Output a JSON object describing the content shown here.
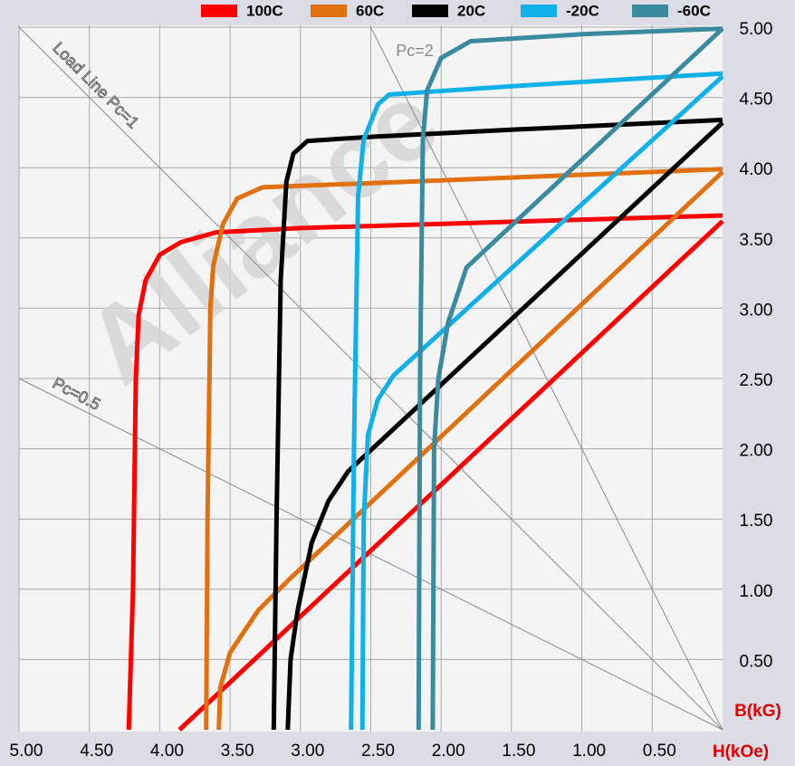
{
  "chart_data": {
    "type": "line",
    "watermark": "Alliance",
    "x_label": "H(kOe)",
    "y_label": "B(kG)",
    "xlim": [
      5,
      0
    ],
    "ylim": [
      0,
      5
    ],
    "xticks": [
      {
        "value": 5,
        "label": "5.00"
      },
      {
        "value": 4.5,
        "label": "4.50"
      },
      {
        "value": 4,
        "label": "4.00"
      },
      {
        "value": 3.5,
        "label": "3.50"
      },
      {
        "value": 3,
        "label": "3.00"
      },
      {
        "value": 2.5,
        "label": "2.50"
      },
      {
        "value": 2,
        "label": "2.00"
      },
      {
        "value": 1.5,
        "label": "1.50"
      },
      {
        "value": 1,
        "label": "1.00"
      },
      {
        "value": 0.5,
        "label": "0.50"
      }
    ],
    "yticks": [
      {
        "value": 0.5,
        "label": "0.50"
      },
      {
        "value": 1,
        "label": "1.00"
      },
      {
        "value": 1.5,
        "label": "1.50"
      },
      {
        "value": 2,
        "label": "2.00"
      },
      {
        "value": 2.5,
        "label": "2.50"
      },
      {
        "value": 3,
        "label": "3.00"
      },
      {
        "value": 3.5,
        "label": "3.50"
      },
      {
        "value": 4,
        "label": "4.00"
      },
      {
        "value": 4.5,
        "label": "4.50"
      },
      {
        "value": 5,
        "label": "5.00"
      }
    ],
    "grid": true,
    "legend_position": "top",
    "load_lines": [
      {
        "label": "Load Line Pc=1",
        "x": [
          5,
          0
        ],
        "values": [
          5,
          0
        ]
      },
      {
        "label": "Pc=2",
        "x": [
          2.5,
          0
        ],
        "values": [
          5,
          0
        ]
      },
      {
        "label": "Pc=0.5",
        "x": [
          5,
          0
        ],
        "values": [
          2.5,
          0
        ]
      }
    ],
    "series": [
      {
        "name": "100C",
        "color": "#ff0000",
        "curves": [
          {
            "x": [
              4.22,
              4.19,
              4.17,
              4.15,
              4.1,
              4.0,
              3.85,
              3.6,
              3.0,
              2.0,
              1.0,
              0
            ],
            "values": [
              0,
              1.0,
              2.5,
              2.95,
              3.2,
              3.38,
              3.47,
              3.54,
              3.57,
              3.6,
              3.63,
              3.66
            ]
          },
          {
            "x": [
              3.86,
              0
            ],
            "values": [
              0,
              3.62
            ]
          }
        ]
      },
      {
        "name": "60C",
        "color": "#e07010",
        "curves": [
          {
            "x": [
              3.67,
              3.66,
              3.64,
              3.62,
              3.55,
              3.45,
              3.27,
              2.0,
              1.0,
              0
            ],
            "values": [
              0,
              1.5,
              3.0,
              3.3,
              3.6,
              3.78,
              3.86,
              3.91,
              3.95,
              3.99
            ]
          },
          {
            "x": [
              3.58,
              3.57,
              3.5,
              3.3,
              3.08,
              0
            ],
            "values": [
              0,
              0.3,
              0.55,
              0.85,
              1.07,
              3.97
            ]
          }
        ]
      },
      {
        "name": "20C",
        "color": "#000000",
        "curves": [
          {
            "x": [
              3.19,
              3.17,
              3.14,
              3.1,
              3.05,
              2.95,
              2.5,
              1.5,
              0
            ],
            "values": [
              0,
              1.5,
              3.2,
              3.9,
              4.1,
              4.19,
              4.22,
              4.27,
              4.34
            ]
          },
          {
            "x": [
              3.09,
              3.07,
              3.02,
              2.92,
              2.8,
              2.66,
              0
            ],
            "values": [
              0,
              0.5,
              0.85,
              1.33,
              1.63,
              1.84,
              4.32
            ]
          }
        ]
      },
      {
        "name": "-20C",
        "color": "#10b0e8",
        "curves": [
          {
            "x": [
              2.64,
              2.62,
              2.59,
              2.55,
              2.45,
              2.37,
              1.5,
              0
            ],
            "values": [
              0,
              2.0,
              3.8,
              4.2,
              4.45,
              4.52,
              4.58,
              4.67
            ]
          },
          {
            "x": [
              2.56,
              2.55,
              2.52,
              2.45,
              2.34,
              0
            ],
            "values": [
              0,
              1.5,
              2.1,
              2.35,
              2.52,
              4.65
            ]
          }
        ]
      },
      {
        "name": "-60C",
        "color": "#3a8aa0",
        "curves": [
          {
            "x": [
              2.16,
              2.15,
              2.13,
              2.1,
              2.0,
              1.79,
              1.0,
              0
            ],
            "values": [
              0,
              2.5,
              4.2,
              4.55,
              4.78,
              4.9,
              4.95,
              4.99
            ]
          },
          {
            "x": [
              2.06,
              2.05,
              2.02,
              1.95,
              1.82,
              0
            ],
            "values": [
              0,
              2.0,
              2.5,
              2.9,
              3.29,
              4.99
            ]
          }
        ]
      }
    ]
  }
}
